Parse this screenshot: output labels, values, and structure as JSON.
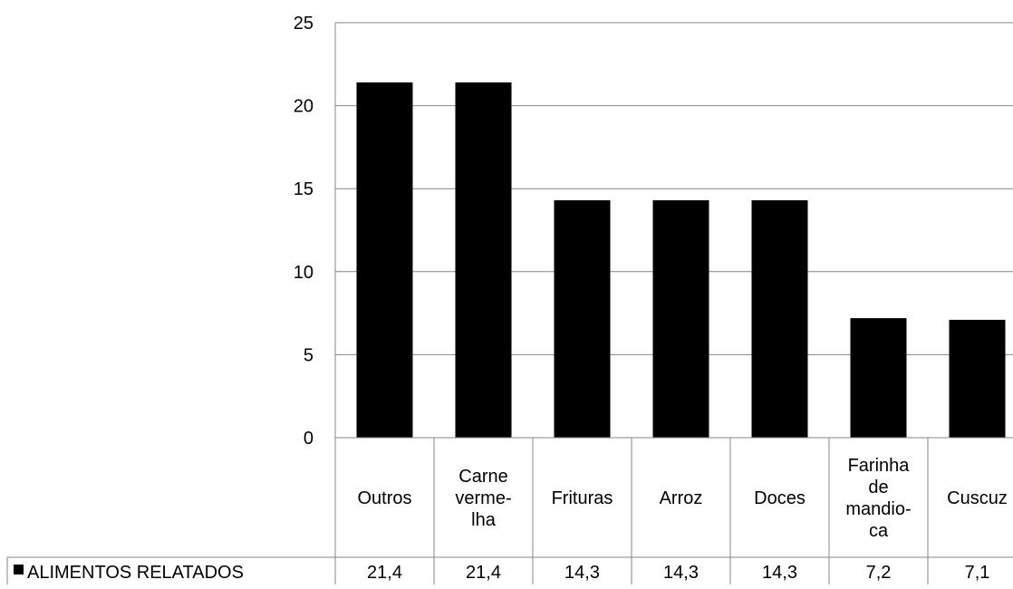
{
  "chart_data": {
    "type": "bar",
    "categories": [
      [
        "Outros"
      ],
      [
        "Carne",
        "verme-",
        "lha"
      ],
      [
        "Frituras"
      ],
      [
        "Arroz"
      ],
      [
        "Doces"
      ],
      [
        "Farinha",
        "de",
        "mandio-",
        "ca"
      ],
      [
        "Cuscuz"
      ]
    ],
    "series": [
      {
        "name": "ALIMENTOS RELATADOS",
        "values": [
          21.4,
          21.4,
          14.3,
          14.3,
          14.3,
          7.2,
          7.1
        ],
        "value_labels": [
          "21,4",
          "21,4",
          "14,3",
          "14,3",
          "14,3",
          "7,2",
          "7,1"
        ],
        "color": "#000000"
      }
    ],
    "ylim": [
      0,
      25
    ],
    "yticks": [
      0,
      5,
      10,
      15,
      20,
      25
    ],
    "grid": true,
    "data_table": true,
    "gridline_color": "#868686"
  }
}
